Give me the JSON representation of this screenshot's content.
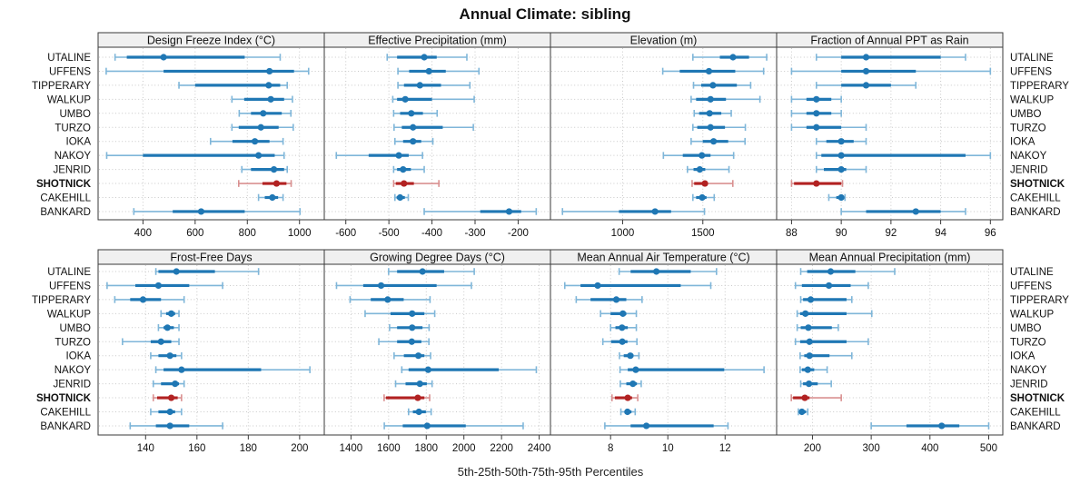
{
  "title": "Annual Climate: sibling",
  "footer_label": "5th-25th-50th-75th-95th Percentiles",
  "percentile_levels": [
    5,
    25,
    50,
    75,
    95
  ],
  "sites": [
    "UTALINE",
    "UFFENS",
    "TIPPERARY",
    "WALKUP",
    "UMBO",
    "TURZO",
    "IOKA",
    "NAKOY",
    "JENRID",
    "SHOTNICK",
    "CAKEHILL",
    "BANKARD"
  ],
  "highlight_site": "SHOTNICK",
  "colors": {
    "series": "#1f77b4",
    "series_light": "#7fb6d9",
    "highlight": "#b22222",
    "highlight_light": "#d99090",
    "header_bg": "#f0f0f0",
    "panel_border": "#3a3a3a",
    "grid": "#c9c9c9",
    "tick": "#3a3a3a",
    "text": "#111111"
  },
  "chart_data": [
    {
      "type": "dot-interval",
      "title": "Design Freeze Index (°C)",
      "grid_row": 0,
      "grid_col": 0,
      "xlim": [
        228,
        1095
      ],
      "ticks": [
        400,
        600,
        800,
        1000
      ],
      "values": [
        [
          293,
          338,
          479,
          790,
          926
        ],
        [
          259,
          479,
          885,
          979,
          1035
        ],
        [
          538,
          600,
          882,
          926,
          953
        ],
        [
          741,
          788,
          890,
          941,
          973
        ],
        [
          769,
          814,
          861,
          932,
          967
        ],
        [
          741,
          767,
          852,
          920,
          976
        ],
        [
          659,
          743,
          829,
          885,
          937
        ],
        [
          261,
          400,
          843,
          905,
          941
        ],
        [
          779,
          814,
          902,
          941,
          953
        ],
        [
          767,
          858,
          912,
          950,
          968
        ],
        [
          843,
          867,
          896,
          918,
          937
        ],
        [
          365,
          514,
          623,
          790,
          1002
        ]
      ]
    },
    {
      "type": "dot-interval",
      "title": "Effective Precipitation (mm)",
      "grid_row": 0,
      "grid_col": 1,
      "xlim": [
        -650,
        -125
      ],
      "ticks": [
        -600,
        -500,
        -400,
        -300,
        -200
      ],
      "values": [
        [
          -504,
          -481,
          -418,
          -389,
          -319
        ],
        [
          -479,
          -453,
          -407,
          -368,
          -291
        ],
        [
          -479,
          -465,
          -428,
          -379,
          -312
        ],
        [
          -491,
          -481,
          -462,
          -400,
          -302
        ],
        [
          -489,
          -474,
          -448,
          -421,
          -388
        ],
        [
          -488,
          -470,
          -444,
          -375,
          -304
        ],
        [
          -486,
          -467,
          -444,
          -425,
          -398
        ],
        [
          -622,
          -547,
          -477,
          -454,
          -422
        ],
        [
          -489,
          -481,
          -467,
          -449,
          -418
        ],
        [
          -489,
          -484,
          -465,
          -442,
          -384
        ],
        [
          -486,
          -482,
          -474,
          -463,
          -455
        ],
        [
          -418,
          -288,
          -221,
          -193,
          -158
        ]
      ]
    },
    {
      "type": "dot-interval",
      "title": "Elevation (m)",
      "grid_row": 0,
      "grid_col": 2,
      "xlim": [
        550,
        1960
      ],
      "ticks": [
        1000,
        1500
      ],
      "values": [
        [
          1438,
          1606,
          1688,
          1788,
          1898
        ],
        [
          1250,
          1356,
          1538,
          1702,
          1879
        ],
        [
          1442,
          1490,
          1563,
          1712,
          1798
        ],
        [
          1427,
          1458,
          1548,
          1644,
          1856
        ],
        [
          1446,
          1477,
          1542,
          1615,
          1677
        ],
        [
          1438,
          1465,
          1548,
          1638,
          1765
        ],
        [
          1427,
          1500,
          1567,
          1658,
          1763
        ],
        [
          1254,
          1375,
          1494,
          1548,
          1692
        ],
        [
          1404,
          1442,
          1481,
          1515,
          1663
        ],
        [
          1433,
          1446,
          1513,
          1529,
          1687
        ],
        [
          1438,
          1458,
          1496,
          1523,
          1571
        ],
        [
          625,
          977,
          1202,
          1302,
          1510
        ]
      ]
    },
    {
      "type": "dot-interval",
      "title": "Fraction of Annual PPT as Rain",
      "grid_row": 0,
      "grid_col": 3,
      "xlim": [
        87.4,
        96.5
      ],
      "ticks": [
        88,
        90,
        92,
        94,
        96
      ],
      "values": [
        [
          89,
          90,
          91,
          94,
          95
        ],
        [
          88,
          90,
          91,
          93,
          96
        ],
        [
          89,
          90,
          91,
          92,
          93
        ],
        [
          88,
          88.6,
          89,
          89.6,
          90
        ],
        [
          88,
          88.6,
          89,
          89.6,
          90
        ],
        [
          88,
          88.6,
          89,
          90,
          91
        ],
        [
          89,
          89.4,
          90,
          90.5,
          91
        ],
        [
          89,
          89.2,
          90,
          95,
          96
        ],
        [
          89,
          89.3,
          90,
          90.2,
          91
        ],
        [
          88,
          88.1,
          89,
          90,
          90.05
        ],
        [
          89.5,
          89.8,
          90,
          90.05,
          90.15
        ],
        [
          90,
          91,
          93,
          94,
          95
        ]
      ]
    },
    {
      "type": "dot-interval",
      "title": "Frost-Free Days",
      "grid_row": 1,
      "grid_col": 0,
      "xlim": [
        121.5,
        209.6
      ],
      "ticks": [
        140,
        160,
        180,
        200
      ],
      "values": [
        [
          144,
          145,
          152,
          167,
          184
        ],
        [
          125,
          136,
          145,
          157,
          170
        ],
        [
          128,
          134,
          139,
          146,
          155
        ],
        [
          146,
          148,
          150,
          151.5,
          153
        ],
        [
          145,
          147,
          148.5,
          151,
          153
        ],
        [
          131,
          142,
          146,
          150,
          153
        ],
        [
          142,
          145,
          149.5,
          152,
          154
        ],
        [
          144,
          147,
          154,
          185,
          204
        ],
        [
          143,
          146,
          151.5,
          153,
          155
        ],
        [
          143,
          144.5,
          150,
          152.5,
          154
        ],
        [
          142,
          145,
          149.5,
          151.5,
          154
        ],
        [
          134,
          144,
          149.5,
          157,
          170
        ]
      ]
    },
    {
      "type": "dot-interval",
      "title": "Growing Degree Days (°C)",
      "grid_row": 1,
      "grid_col": 1,
      "xlim": [
        1258,
        2460
      ],
      "ticks": [
        1400,
        1600,
        1800,
        2000,
        2200,
        2400
      ],
      "values": [
        [
          1600,
          1645,
          1780,
          1895,
          2055
        ],
        [
          1323,
          1465,
          1560,
          1855,
          2040
        ],
        [
          1395,
          1505,
          1595,
          1680,
          1820
        ],
        [
          1475,
          1610,
          1725,
          1790,
          1845
        ],
        [
          1605,
          1645,
          1725,
          1780,
          1815
        ],
        [
          1548,
          1645,
          1723,
          1774,
          1814
        ],
        [
          1629,
          1681,
          1758,
          1790,
          1823
        ],
        [
          1670,
          1706,
          1810,
          2185,
          2385
        ],
        [
          1637,
          1690,
          1766,
          1803,
          1831
        ],
        [
          1576,
          1586,
          1755,
          1790,
          1818
        ],
        [
          1706,
          1729,
          1761,
          1798,
          1826
        ],
        [
          1577,
          1675,
          1805,
          2010,
          2315
        ]
      ]
    },
    {
      "type": "dot-interval",
      "title": "Mean Annual Air Temperature (°C)",
      "grid_row": 1,
      "grid_col": 2,
      "xlim": [
        5.9,
        13.8
      ],
      "ticks": [
        8,
        10,
        12
      ],
      "values": [
        [
          8.3,
          8.7,
          9.6,
          10.8,
          11.7
        ],
        [
          6.4,
          6.95,
          7.55,
          10.45,
          11.5
        ],
        [
          6.8,
          7.3,
          8.2,
          8.55,
          9.1
        ],
        [
          7.65,
          8.0,
          8.43,
          8.55,
          8.9
        ],
        [
          8.0,
          8.17,
          8.4,
          8.6,
          8.9
        ],
        [
          7.73,
          8.02,
          8.41,
          8.59,
          8.92
        ],
        [
          8.31,
          8.46,
          8.69,
          8.8,
          8.99
        ],
        [
          8.33,
          8.6,
          8.88,
          11.97,
          13.36
        ],
        [
          8.34,
          8.55,
          8.78,
          8.92,
          9.07
        ],
        [
          8.05,
          8.15,
          8.6,
          8.75,
          8.95
        ],
        [
          8.36,
          8.49,
          8.59,
          8.73,
          8.86
        ],
        [
          7.8,
          8.7,
          9.25,
          11.6,
          12.1
        ]
      ]
    },
    {
      "type": "dot-interval",
      "title": "Mean Annual Precipitation (mm)",
      "grid_row": 1,
      "grid_col": 3,
      "xlim": [
        139,
        524
      ],
      "ticks": [
        200,
        300,
        400,
        500
      ],
      "values": [
        [
          180,
          191,
          231,
          273,
          340
        ],
        [
          171,
          182,
          228,
          265,
          295
        ],
        [
          180,
          184,
          197,
          258,
          267
        ],
        [
          174,
          179,
          188,
          258,
          301
        ],
        [
          174,
          180,
          193,
          233,
          244
        ],
        [
          171,
          179,
          195,
          258,
          295
        ],
        [
          179,
          186,
          195,
          229,
          267
        ],
        [
          179,
          182,
          192,
          203,
          225
        ],
        [
          180,
          184,
          194,
          209,
          232
        ],
        [
          164,
          167,
          187,
          195,
          249
        ],
        [
          176,
          179,
          182,
          189,
          192
        ],
        [
          300,
          360,
          420,
          450,
          500
        ]
      ]
    }
  ]
}
